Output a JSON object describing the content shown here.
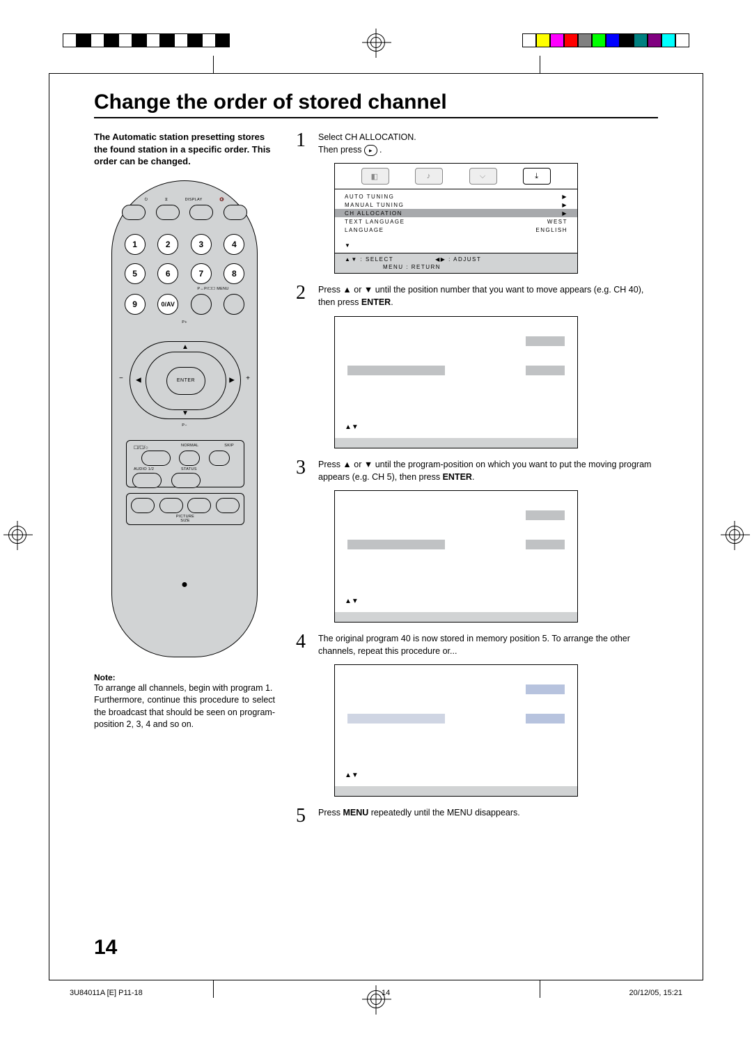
{
  "title": "Change the order of stored channel",
  "intro": "The Automatic station presetting stores the found station in a specific order. This order can be changed.",
  "remote": {
    "top_labels": [
      "",
      "",
      "DISPLAY",
      ""
    ],
    "numbers": [
      "1",
      "2",
      "3",
      "4",
      "5",
      "6",
      "7",
      "8",
      "9",
      "0/AV"
    ],
    "under_9_row": "P↔P/☐☐ MENU",
    "p_plus": "P+",
    "p_minus": "P−",
    "enter": "ENTER",
    "panel_top": {
      "normal": "NORMAL",
      "skip": "SKIP"
    },
    "panel_mid": {
      "audio": "AUDIO 1/2",
      "status": "STATUS"
    },
    "picture_size": "PICTURE\nSIZE"
  },
  "note": {
    "heading": "Note:",
    "line1": "To arrange all channels, begin with program 1.",
    "line2": "Furthermore, continue this procedure to select the broadcast that should be seen on program-position 2, 3, 4 and so on."
  },
  "steps": {
    "s1a": "Select CH ALLOCATION.",
    "s1b": "Then press ",
    "s2": "Press  ▲  or  ▼  until the position number that you want to move appears (e.g. CH 40), then press ",
    "s2_enter": "ENTER",
    "s3a": "Press  ▲  or  ▼  until the program-position on which you want to put the moving program appears (e.g. CH 5), then press ",
    "s3_enter": "ENTER",
    "s4": "The original program 40 is now stored in memory position 5. To arrange the other channels, repeat this procedure or...",
    "s5a": "Press ",
    "s5_menu": "MENU",
    "s5b": " repeatedly until the MENU disappears."
  },
  "osd": {
    "rows": [
      {
        "l": "AUTO TUNING",
        "r": "▶"
      },
      {
        "l": "MANUAL TUNING",
        "r": "▶"
      },
      {
        "l": "CH ALLOCATION",
        "r": "▶",
        "sel": true
      },
      {
        "l": "TEXT LANGUAGE",
        "r": "WEST"
      },
      {
        "l": "LANGUAGE",
        "r": "ENGLISH"
      }
    ],
    "arrow_down": "▼",
    "foot_select": "▲▼ : SELECT",
    "foot_adjust": "◀▶ : ADJUST",
    "foot_return": "MENU : RETURN",
    "tri": "▲▼"
  },
  "reg_colors_left": [
    "#ffffff",
    "#000000",
    "#ffffff",
    "#000000",
    "#ffffff",
    "#000000",
    "#ffffff",
    "#000000",
    "#ffffff",
    "#000000",
    "#ffffff",
    "#000000"
  ],
  "reg_colors_right": [
    "#ffffff",
    "#ffff00",
    "#ff00ff",
    "#ff0000",
    "#808080",
    "#00ff00",
    "#0000ff",
    "#000000",
    "#008080",
    "#800080",
    "#00ffff",
    "#ffffff"
  ],
  "page_number": "14",
  "meta": {
    "left": "3U84011A [E] P11-18",
    "mid": "14",
    "right": "20/12/05, 15:21"
  }
}
